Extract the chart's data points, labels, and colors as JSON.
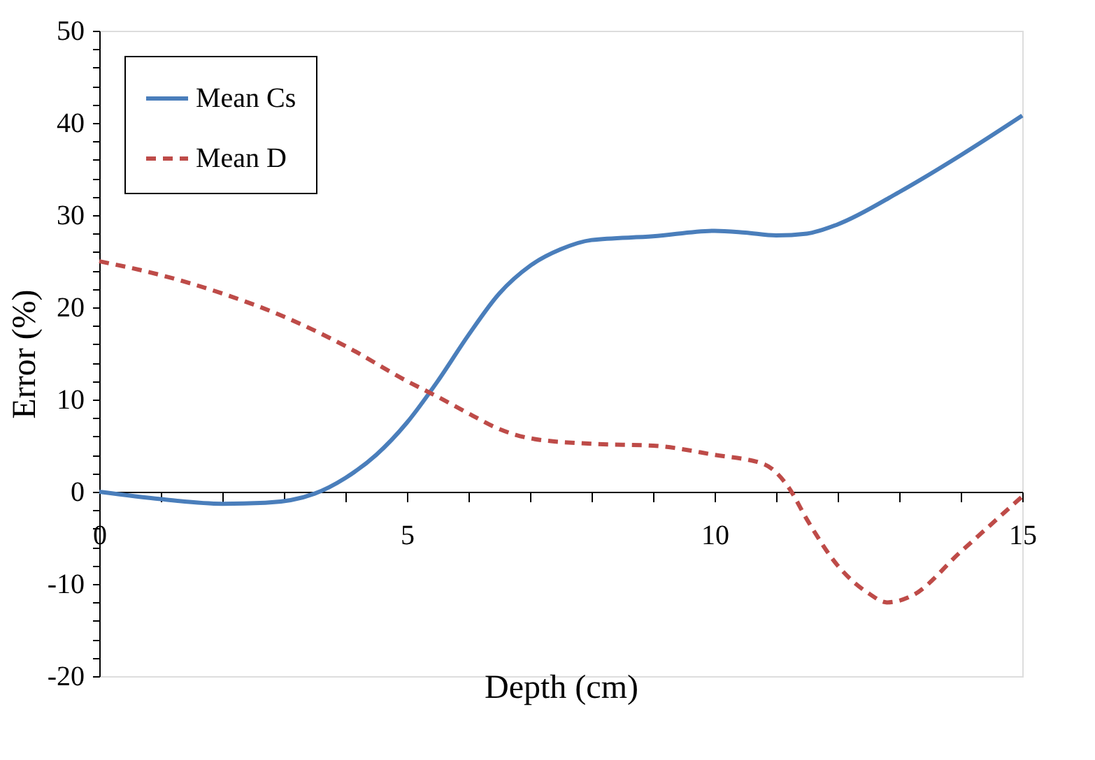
{
  "chart_data": {
    "type": "line",
    "xlabel": "Depth (cm)",
    "ylabel": "Error (%)",
    "xlim": [
      0,
      15
    ],
    "ylim": [
      -20,
      50
    ],
    "xticks": [
      0,
      {
        "value": 1,
        "label": null
      },
      {
        "value": 2,
        "label": null
      },
      {
        "value": 3,
        "label": null
      },
      {
        "value": 4,
        "label": null
      },
      5,
      {
        "value": 6,
        "label": null
      },
      {
        "value": 7,
        "label": null
      },
      {
        "value": 8,
        "label": null
      },
      {
        "value": 9,
        "label": null
      },
      10,
      {
        "value": 11,
        "label": null
      },
      {
        "value": 12,
        "label": null
      },
      {
        "value": 13,
        "label": null
      },
      {
        "value": 14,
        "label": null
      },
      15
    ],
    "yticks": [
      -20,
      {
        "value": -18,
        "label": null
      },
      {
        "value": -16,
        "label": null
      },
      {
        "value": -14,
        "label": null
      },
      {
        "value": -12,
        "label": null
      },
      -10,
      {
        "value": -8,
        "label": null
      },
      {
        "value": -6,
        "label": null
      },
      {
        "value": -4,
        "label": null
      },
      {
        "value": -2,
        "label": null
      },
      0,
      {
        "value": 2,
        "label": null
      },
      {
        "value": 4,
        "label": null
      },
      {
        "value": 6,
        "label": null
      },
      {
        "value": 8,
        "label": null
      },
      10,
      {
        "value": 12,
        "label": null
      },
      {
        "value": 14,
        "label": null
      },
      {
        "value": 16,
        "label": null
      },
      {
        "value": 18,
        "label": null
      },
      20,
      {
        "value": 22,
        "label": null
      },
      {
        "value": 24,
        "label": null
      },
      {
        "value": 26,
        "label": null
      },
      {
        "value": 28,
        "label": null
      },
      30,
      {
        "value": 32,
        "label": null
      },
      {
        "value": 34,
        "label": null
      },
      {
        "value": 36,
        "label": null
      },
      {
        "value": 38,
        "label": null
      },
      40,
      {
        "value": 42,
        "label": null
      },
      {
        "value": 44,
        "label": null
      },
      {
        "value": 46,
        "label": null
      },
      {
        "value": 48,
        "label": null
      },
      50
    ],
    "grid": false,
    "legend": "top left",
    "marker": "none",
    "series": [
      {
        "name": "Mean Cs",
        "color": "#4a7ebb",
        "line_style": "solid",
        "x": [
          0,
          1,
          2,
          2.7,
          3.5,
          4,
          4.5,
          5,
          5.5,
          6,
          6.5,
          7,
          7.5,
          8,
          9,
          10,
          10.5,
          11,
          11.5,
          12,
          13,
          14,
          15
        ],
        "values": [
          0,
          -0.8,
          -1.3,
          -1.2,
          -0.2,
          1.5,
          4,
          7.5,
          12,
          17,
          21.5,
          24.5,
          26.3,
          27.3,
          27.7,
          28.3,
          28.1,
          27.8,
          28,
          29,
          32.5,
          36.5,
          40.8
        ]
      },
      {
        "name": "Mean D",
        "color": "#be4b48",
        "line_style": "dashed",
        "x": [
          0,
          1,
          2,
          3,
          4,
          5,
          5.5,
          6,
          6.5,
          7,
          8,
          9,
          10,
          10.8,
          11.2,
          11.5,
          12,
          12.5,
          12.8,
          13.2,
          14,
          15
        ],
        "values": [
          25,
          23.5,
          21.5,
          19,
          15.8,
          12,
          10.3,
          8.5,
          6.8,
          5.8,
          5.2,
          5,
          4,
          3,
          0.5,
          -3,
          -8,
          -11,
          -12,
          -11.3,
          -6.5,
          -0.5
        ]
      }
    ]
  }
}
